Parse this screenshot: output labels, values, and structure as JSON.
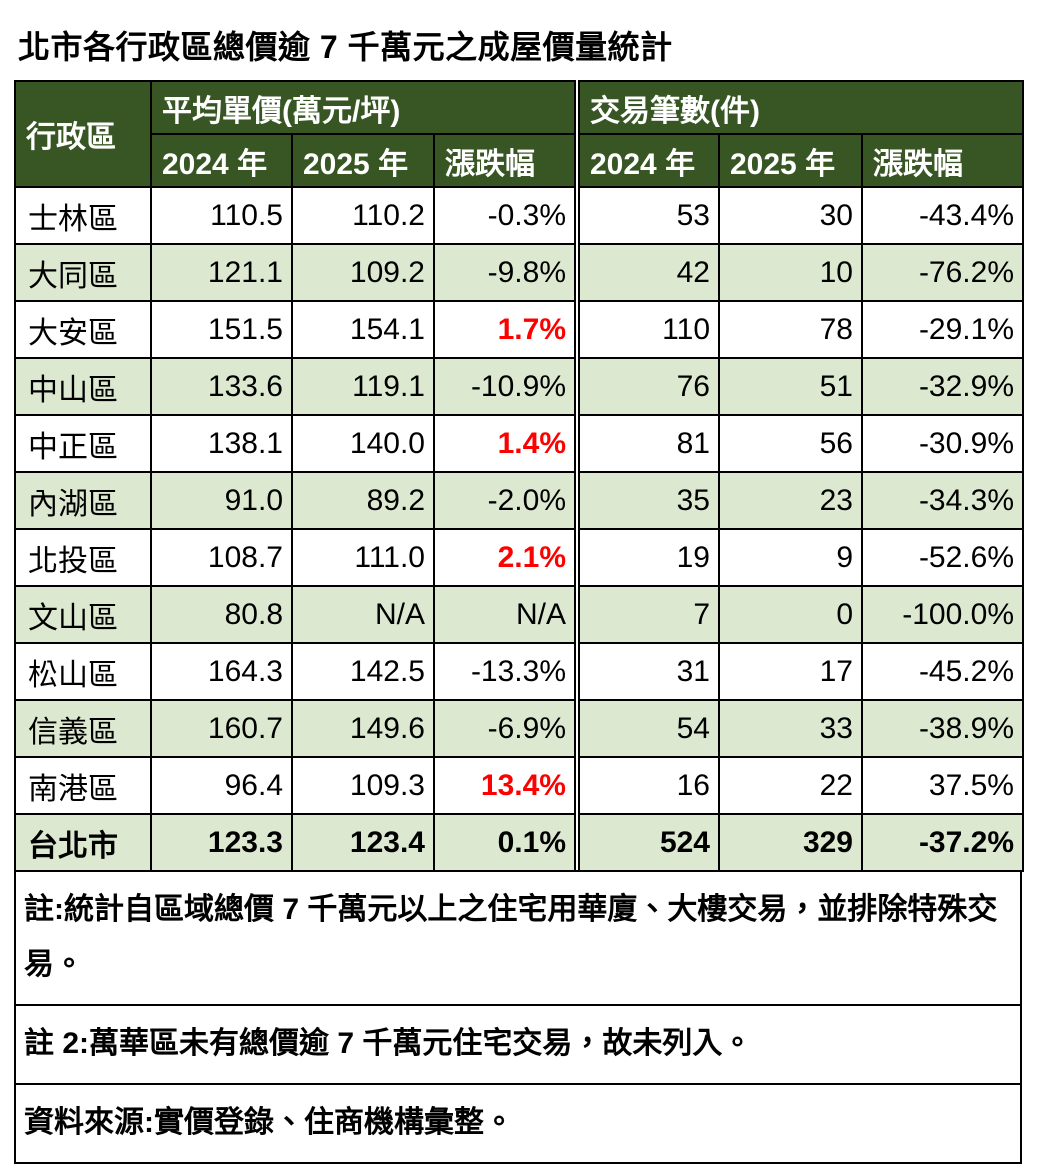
{
  "chart_data": {
    "type": "table",
    "title": "北市各行政區總價逾 7 千萬元之成屋價量統計",
    "header": {
      "row_label": "行政區",
      "groups": [
        {
          "label": "平均單價(萬元/坪)",
          "sub": [
            "2024 年",
            "2025 年",
            "漲跌幅"
          ]
        },
        {
          "label": "交易筆數(件)",
          "sub": [
            "2024 年",
            "2025 年",
            "漲跌幅"
          ]
        }
      ]
    },
    "rows": [
      {
        "district": "士林區",
        "cells": [
          "110.5",
          "110.2",
          "-0.3%",
          "53",
          "30",
          "-43.4%"
        ],
        "red_cells": [],
        "is_total": false
      },
      {
        "district": "大同區",
        "cells": [
          "121.1",
          "109.2",
          "-9.8%",
          "42",
          "10",
          "-76.2%"
        ],
        "red_cells": [],
        "is_total": false
      },
      {
        "district": "大安區",
        "cells": [
          "151.5",
          "154.1",
          "1.7%",
          "110",
          "78",
          "-29.1%"
        ],
        "red_cells": [
          2
        ],
        "is_total": false
      },
      {
        "district": "中山區",
        "cells": [
          "133.6",
          "119.1",
          "-10.9%",
          "76",
          "51",
          "-32.9%"
        ],
        "red_cells": [],
        "is_total": false
      },
      {
        "district": "中正區",
        "cells": [
          "138.1",
          "140.0",
          "1.4%",
          "81",
          "56",
          "-30.9%"
        ],
        "red_cells": [
          2
        ],
        "is_total": false
      },
      {
        "district": "內湖區",
        "cells": [
          "91.0",
          "89.2",
          "-2.0%",
          "35",
          "23",
          "-34.3%"
        ],
        "red_cells": [],
        "is_total": false
      },
      {
        "district": "北投區",
        "cells": [
          "108.7",
          "111.0",
          "2.1%",
          "19",
          "9",
          "-52.6%"
        ],
        "red_cells": [
          2
        ],
        "is_total": false
      },
      {
        "district": "文山區",
        "cells": [
          "80.8",
          "N/A",
          "N/A",
          "7",
          "0",
          "-100.0%"
        ],
        "red_cells": [],
        "is_total": false
      },
      {
        "district": "松山區",
        "cells": [
          "164.3",
          "142.5",
          "-13.3%",
          "31",
          "17",
          "-45.2%"
        ],
        "red_cells": [],
        "is_total": false
      },
      {
        "district": "信義區",
        "cells": [
          "160.7",
          "149.6",
          "-6.9%",
          "54",
          "33",
          "-38.9%"
        ],
        "red_cells": [],
        "is_total": false
      },
      {
        "district": "南港區",
        "cells": [
          "96.4",
          "109.3",
          "13.4%",
          "16",
          "22",
          "37.5%"
        ],
        "red_cells": [
          2
        ],
        "is_total": false
      },
      {
        "district": "台北市",
        "cells": [
          "123.3",
          "123.4",
          "0.1%",
          "524",
          "329",
          "-37.2%"
        ],
        "red_cells": [],
        "is_total": true
      }
    ],
    "notes": [
      "註:統計自區域總價 7 千萬元以上之住宅用華廈、大樓交易，並排除特殊交易。",
      "註 2:萬華區未有總價逾 7 千萬元住宅交易，故未列入。",
      "資料來源:實價登錄、住商機構彙整。"
    ],
    "colors": {
      "header_green": "#375623",
      "row_alt_green": "#dce9d0",
      "positive_price_red": "#fe0000",
      "text_black": "#000000"
    },
    "layout_hints": {
      "alternating_rows": true,
      "red_means": "positive price change",
      "total_row_bold": true,
      "group_divider": "double line"
    }
  }
}
